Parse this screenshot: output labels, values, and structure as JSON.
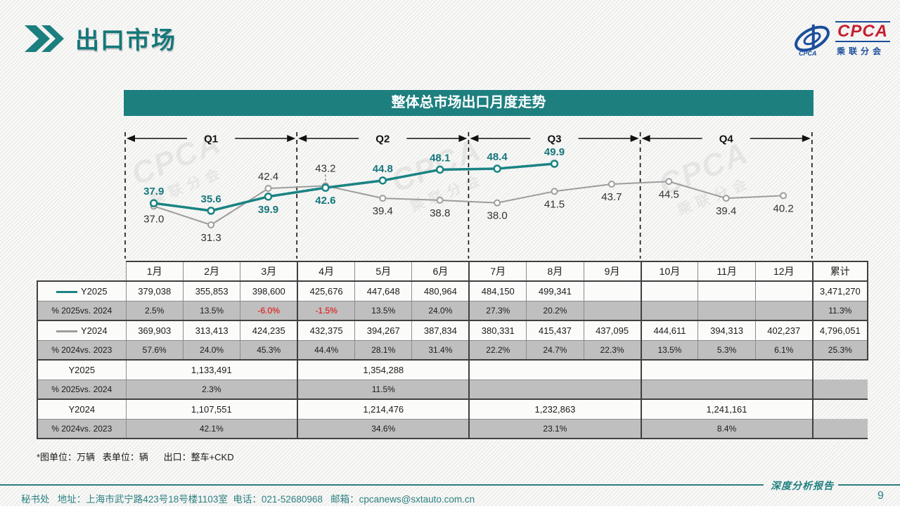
{
  "header": {
    "title": "出口市场"
  },
  "logo": {
    "name": "CPCA",
    "subtitle": "乘联分会",
    "blue": "#1b4e9b",
    "red": "#c51f2e"
  },
  "colors": {
    "accent_teal": "#1e7f7f",
    "series_2025": "#1a8383",
    "series_2024": "#9d9d9d",
    "negative_red": "#e80000"
  },
  "chart_data": {
    "type": "line",
    "title": "整体总市场出口月度走势",
    "unit": "万辆",
    "x_categories": [
      "1月",
      "2月",
      "3月",
      "4月",
      "5月",
      "6月",
      "7月",
      "8月",
      "9月",
      "10月",
      "11月",
      "12月"
    ],
    "quarters": [
      "Q1",
      "Q2",
      "Q3",
      "Q4"
    ],
    "ylim": [
      30,
      51
    ],
    "grid": false,
    "legend_position": "table-left",
    "series": [
      {
        "name": "Y2025",
        "color": "#1a8383",
        "values": [
          37.9,
          35.6,
          39.9,
          42.6,
          44.8,
          48.1,
          48.4,
          49.9
        ],
        "label_side": [
          "above",
          "above",
          "below",
          "below",
          "above",
          "above",
          "above",
          "above"
        ]
      },
      {
        "name": "Y2024",
        "color": "#9d9d9d",
        "values": [
          37.0,
          31.3,
          42.4,
          43.2,
          39.4,
          38.8,
          38.0,
          41.5,
          43.7,
          44.5,
          39.4,
          40.2
        ],
        "label_side": [
          "below",
          "below",
          "above",
          "above_leader",
          "below",
          "below",
          "below",
          "below",
          "below",
          "below",
          "below",
          "below"
        ]
      }
    ]
  },
  "table": {
    "col_headers": [
      "1月",
      "2月",
      "3月",
      "4月",
      "5月",
      "6月",
      "7月",
      "8月",
      "9月",
      "10月",
      "11月",
      "12月",
      "累计"
    ],
    "monthly_rows": [
      {
        "label": "Y2025",
        "swatch": "#1a8383",
        "kind": "val",
        "cells": [
          "379,038",
          "355,853",
          "398,600",
          "425,676",
          "447,648",
          "480,964",
          "484,150",
          "499,341",
          "",
          "",
          "",
          "",
          "3,471,270"
        ],
        "red": []
      },
      {
        "label": "% 2025vs. 2024",
        "kind": "pct",
        "cells": [
          "2.5%",
          "13.5%",
          "-6.0%",
          "-1.5%",
          "13.5%",
          "24.0%",
          "27.3%",
          "20.2%",
          "",
          "",
          "",
          "",
          "11.3%"
        ],
        "red": [
          2,
          3
        ]
      },
      {
        "label": "Y2024",
        "swatch": "#9d9d9d",
        "kind": "val",
        "cells": [
          "369,903",
          "313,413",
          "424,235",
          "432,375",
          "394,267",
          "387,834",
          "380,331",
          "415,437",
          "437,095",
          "444,611",
          "394,313",
          "402,237",
          "4,796,051"
        ],
        "red": []
      },
      {
        "label": "% 2024vs. 2023",
        "kind": "pct",
        "cells": [
          "57.6%",
          "24.0%",
          "45.3%",
          "44.4%",
          "28.1%",
          "31.4%",
          "22.2%",
          "24.7%",
          "22.3%",
          "13.5%",
          "5.3%",
          "6.1%",
          "25.3%"
        ],
        "red": []
      }
    ],
    "quarter_rows": [
      {
        "label": "Y2025",
        "kind": "val",
        "cells": [
          "1,133,491",
          "1,354,288",
          "",
          ""
        ]
      },
      {
        "label": "% 2025vs. 2024",
        "kind": "pct",
        "cells": [
          "2.3%",
          "11.5%",
          "",
          ""
        ]
      },
      {
        "label": "Y2024",
        "kind": "val",
        "cells": [
          "1,107,551",
          "1,214,476",
          "1,232,863",
          "1,241,161"
        ]
      },
      {
        "label": "% 2024vs. 2023",
        "kind": "pct",
        "cells": [
          "42.1%",
          "34.6%",
          "23.1%",
          "8.4%"
        ]
      }
    ]
  },
  "footnote": "*图单位：万辆   表单位：辆      出口：整车+CKD",
  "footer": {
    "contact": "秘书处   地址：上海市武宁路423号18号楼1103室  电话：021-52680968   邮箱：cpcanews@sxtauto.com.cn",
    "report_label": "深度分析报告",
    "page": "9"
  },
  "watermark": {
    "big": "CPCA",
    "small": "乘联分会"
  }
}
